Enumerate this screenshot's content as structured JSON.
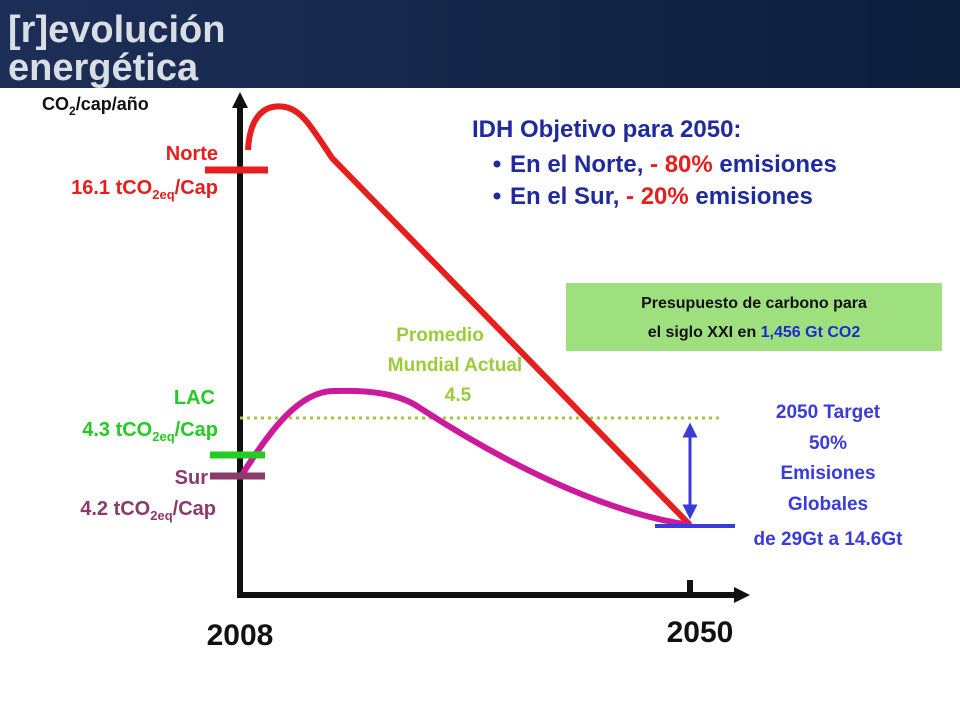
{
  "header": {
    "line1": "[r]evolución",
    "line2": "energética"
  },
  "y_axis_label": [
    "CO",
    "2",
    "/cap/año"
  ],
  "x_labels": [
    "2008",
    "2050"
  ],
  "norte": {
    "name": "Norte",
    "value": [
      "16.1 tCO",
      "2eq",
      "/Cap"
    ]
  },
  "lac": {
    "name": "LAC",
    "value": [
      "4.3 tCO",
      "2eq",
      "/Cap"
    ]
  },
  "sur": {
    "name": "Sur",
    "value": [
      "4.2 tCO",
      "2eq",
      "/Cap"
    ]
  },
  "promedio": [
    "Promedio",
    "Mundial Actual",
    "4.5"
  ],
  "idh": {
    "title": "IDH Objetivo para 2050:",
    "bullets": [
      [
        "En el Norte, ",
        "- 80%",
        " emisiones"
      ],
      [
        "En el Sur, ",
        "- 20%",
        " emisiones"
      ]
    ]
  },
  "budget": {
    "line1": "Presupuesto de carbono para",
    "line2_prefix": "el siglo XXI en ",
    "line2_value": "1,456 Gt CO2"
  },
  "target": [
    "2050 Target",
    "50%",
    "Emisiones",
    "Globales",
    "de 29Gt a 14.6Gt"
  ]
}
